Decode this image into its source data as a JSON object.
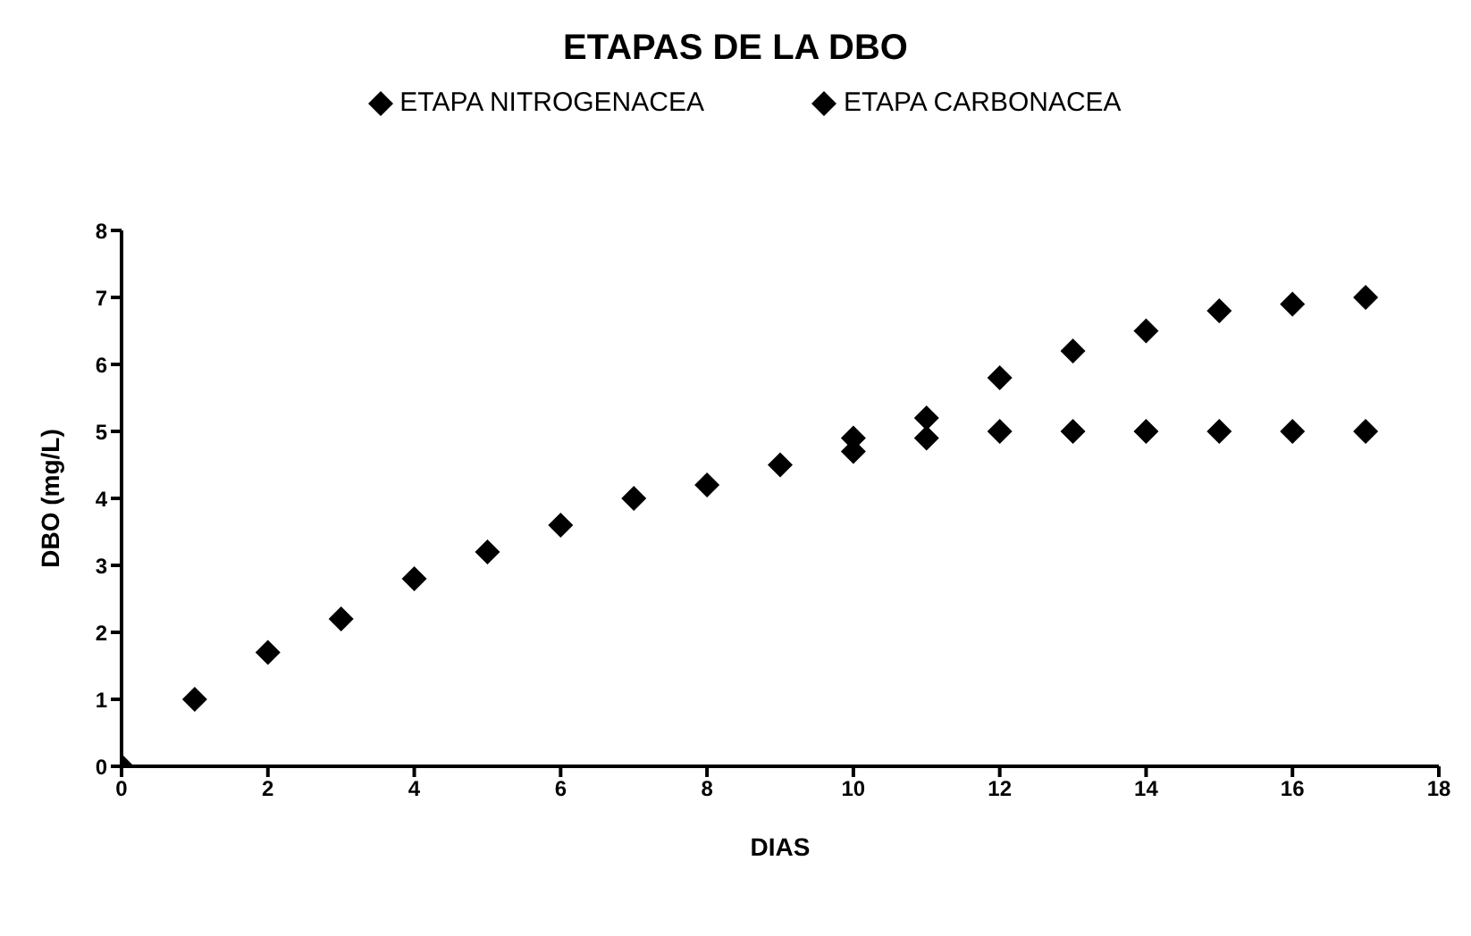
{
  "chart_data": {
    "type": "scatter",
    "title": "ETAPAS DE LA DBO",
    "xlabel": "DIAS",
    "ylabel": "DBO (mg/L)",
    "xlim": [
      0,
      18
    ],
    "xticks": [
      0,
      2,
      4,
      6,
      8,
      10,
      12,
      14,
      16,
      18
    ],
    "ylim": [
      0,
      8
    ],
    "yticks": [
      0,
      1,
      2,
      3,
      4,
      5,
      6,
      7,
      8
    ],
    "grid": false,
    "legend": "top",
    "marker": "diamond",
    "series": [
      {
        "name": "ETAPA NITROGENACEA",
        "color": "#000000",
        "x": [
          0,
          1,
          2,
          3,
          4,
          5,
          6,
          7,
          8,
          9,
          10,
          11,
          12,
          13,
          14,
          15,
          16,
          17
        ],
        "values": [
          0,
          1.0,
          1.7,
          2.2,
          2.8,
          3.2,
          3.6,
          4.0,
          4.2,
          4.5,
          4.9,
          5.2,
          5.8,
          6.2,
          6.5,
          6.8,
          6.9,
          7.0
        ]
      },
      {
        "name": "ETAPA CARBONACEA",
        "color": "#000000",
        "x": [
          10,
          11,
          12,
          13,
          14,
          15,
          16,
          17
        ],
        "values": [
          4.7,
          4.9,
          5.0,
          5.0,
          5.0,
          5.0,
          5.0,
          5.0
        ]
      }
    ]
  }
}
